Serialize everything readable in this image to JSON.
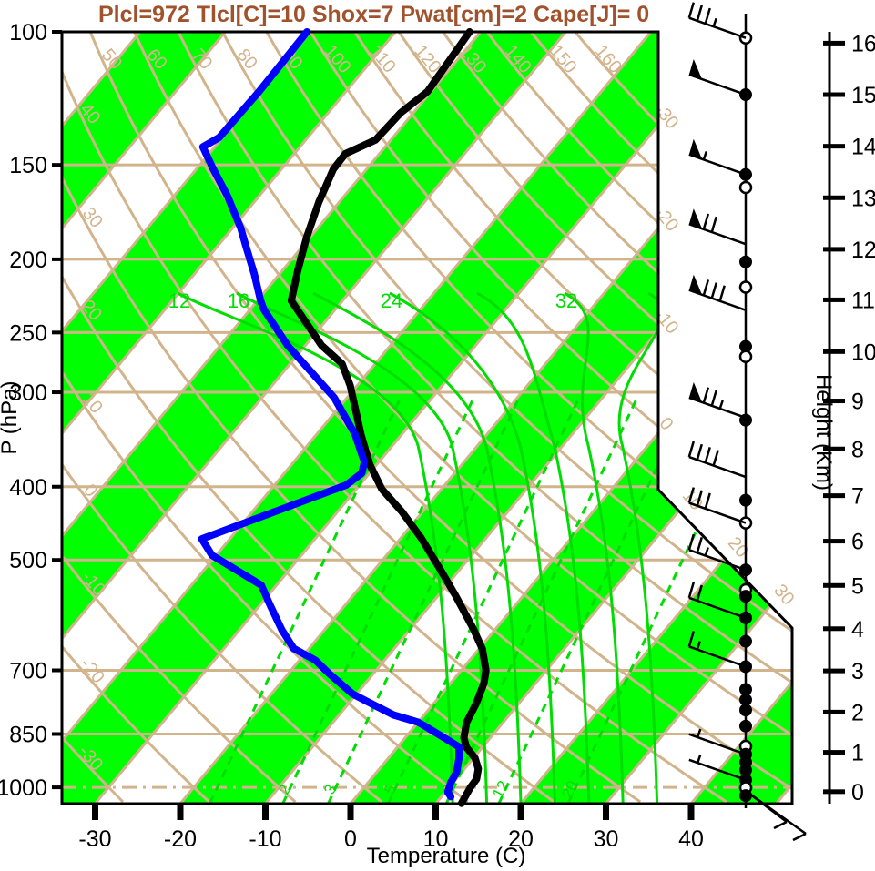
{
  "title": {
    "text": "Plcl=972 Tlcl[C]=10 Shox=7 Pwat[cm]=2 Cape[J]= 0",
    "color": "#A0522D"
  },
  "axes": {
    "pressure": {
      "title": "P (hPa)",
      "ticks": [
        100,
        150,
        200,
        250,
        300,
        400,
        500,
        700,
        850,
        1000
      ]
    },
    "temperature": {
      "title": "Temperature (C)",
      "ticks": [
        -30,
        -20,
        -10,
        0,
        10,
        20,
        30,
        40
      ]
    },
    "height": {
      "title": "Height (Km)",
      "ticks": [
        0,
        1,
        2,
        3,
        4,
        5,
        6,
        7,
        8,
        9,
        10,
        11,
        12,
        13,
        14,
        15,
        16
      ]
    }
  },
  "background": {
    "colors": {
      "band_green": "#00FF00",
      "tan": "#D2B48C",
      "green_line": "#00DD00"
    },
    "isotherms": {
      "start": -120,
      "end": 50,
      "step": 10,
      "edge_labels": [
        -30,
        -20,
        -10,
        0,
        10,
        20,
        30
      ]
    },
    "dry_adiabats": {
      "start": -30,
      "end": 160,
      "step": 10
    },
    "moist_adiabats": {
      "values": [
        12,
        16,
        20,
        24,
        28,
        32,
        36
      ],
      "labeled": [
        12,
        16,
        24,
        32
      ]
    },
    "mixing_ratio": {
      "values": [
        1,
        2,
        3,
        5,
        8,
        12,
        20
      ],
      "labeled": [
        2,
        3,
        5,
        8,
        12,
        20
      ]
    }
  },
  "chart_data": {
    "type": "line",
    "title": "Plcl=972 Tlcl[C]=10 Shox=7 Pwat[cm]=2 Cape[J]= 0",
    "xlabel": "Temperature (C)",
    "ylabel_left": "P (hPa)",
    "ylabel_right": "Height (Km)",
    "xlim": [
      -34,
      52
    ],
    "pressure_range": [
      100,
      1050
    ],
    "series": [
      {
        "name": "temperature",
        "color": "#000000",
        "points": [
          [
            1050,
            13.0
          ],
          [
            1000,
            12.5
          ],
          [
            975,
            12.4
          ],
          [
            945,
            11.6
          ],
          [
            915,
            10.2
          ],
          [
            885,
            8.1
          ],
          [
            860,
            6.9
          ],
          [
            820,
            5.7
          ],
          [
            775,
            5.0
          ],
          [
            727,
            3.9
          ],
          [
            700,
            2.9
          ],
          [
            656,
            0.4
          ],
          [
            616,
            -2.7
          ],
          [
            556,
            -8.1
          ],
          [
            512,
            -12.6
          ],
          [
            467,
            -17.7
          ],
          [
            432,
            -22.4
          ],
          [
            403,
            -27.0
          ],
          [
            374,
            -30.8
          ],
          [
            341,
            -34.8
          ],
          [
            294,
            -40.8
          ],
          [
            275,
            -43.9
          ],
          [
            260,
            -48.1
          ],
          [
            227,
            -56.0
          ],
          [
            207,
            -58.2
          ],
          [
            187,
            -60.4
          ],
          [
            168,
            -62.4
          ],
          [
            152,
            -63.9
          ],
          [
            145,
            -64.0
          ],
          [
            139,
            -61.8
          ],
          [
            128,
            -61.5
          ],
          [
            120,
            -60.4
          ],
          [
            100,
            -61.3
          ]
        ]
      },
      {
        "name": "dewpoint",
        "color": "#0000FF",
        "points": [
          [
            1029,
            11.1
          ],
          [
            1015,
            10.3
          ],
          [
            985,
            9.7
          ],
          [
            955,
            9.4
          ],
          [
            915,
            8.3
          ],
          [
            884,
            7.2
          ],
          [
            852,
            3.7
          ],
          [
            820,
            0.0
          ],
          [
            802,
            -3.6
          ],
          [
            780,
            -6.6
          ],
          [
            752,
            -10.5
          ],
          [
            707,
            -15.2
          ],
          [
            679,
            -18.1
          ],
          [
            655,
            -21.8
          ],
          [
            619,
            -25.0
          ],
          [
            574,
            -28.8
          ],
          [
            540,
            -31.8
          ],
          [
            493,
            -40.5
          ],
          [
            469,
            -43.3
          ],
          [
            398,
            -31.6
          ],
          [
            384,
            -30.9
          ],
          [
            371,
            -31.7
          ],
          [
            341,
            -35.5
          ],
          [
            305,
            -41.5
          ],
          [
            260,
            -52.1
          ],
          [
            233,
            -58.4
          ],
          [
            227,
            -59.6
          ],
          [
            209,
            -63.0
          ],
          [
            192,
            -66.7
          ],
          [
            182,
            -69.0
          ],
          [
            165,
            -73.7
          ],
          [
            152,
            -78.0
          ],
          [
            142,
            -81.4
          ],
          [
            138,
            -80.4
          ],
          [
            120,
            -80.2
          ],
          [
            100,
            -80.4
          ]
        ]
      }
    ],
    "wind_barbs": {
      "dots": [
        {
          "km": 16.1,
          "type": "open"
        },
        {
          "km": 15.0,
          "type": "filled"
        },
        {
          "km": 13.45,
          "type": "filled"
        },
        {
          "km": 13.2,
          "type": "open"
        },
        {
          "km": 11.75,
          "type": "filled"
        },
        {
          "km": 11.25,
          "type": "open"
        },
        {
          "km": 10.1,
          "type": "filled"
        },
        {
          "km": 9.9,
          "type": "open"
        },
        {
          "km": 8.6,
          "type": "filled"
        },
        {
          "km": 6.9,
          "type": "filled"
        },
        {
          "km": 6.4,
          "type": "open"
        },
        {
          "km": 5.35,
          "type": "filled"
        },
        {
          "km": 4.9,
          "type": "open"
        },
        {
          "km": 4.75,
          "type": "filled"
        },
        {
          "km": 4.25,
          "type": "filled"
        },
        {
          "km": 3.7,
          "type": "filled"
        },
        {
          "km": 3.1,
          "type": "filled"
        },
        {
          "km": 2.55,
          "type": "filled"
        },
        {
          "km": 2.3,
          "type": "filled"
        },
        {
          "km": 2.05,
          "type": "filled"
        },
        {
          "km": 1.65,
          "type": "filled"
        },
        {
          "km": 1.15,
          "type": "open"
        },
        {
          "km": 0.95,
          "type": "filled"
        },
        {
          "km": 0.75,
          "type": "filled"
        },
        {
          "km": 0.55,
          "type": "filled"
        },
        {
          "km": 0.3,
          "type": "filled"
        },
        {
          "km": 0.1,
          "type": "open"
        },
        {
          "km": -0.1,
          "type": "filled"
        }
      ],
      "barbs": [
        {
          "km": 16.1,
          "flags": 0,
          "full": 3,
          "half": 1
        },
        {
          "km": 15.0,
          "flags": 1,
          "full": 0,
          "half": 0
        },
        {
          "km": 13.45,
          "flags": 1,
          "full": 0,
          "half": 1
        },
        {
          "km": 12.1,
          "flags": 1,
          "full": 2,
          "half": 0
        },
        {
          "km": 10.8,
          "flags": 1,
          "full": 3,
          "half": 0
        },
        {
          "km": 8.65,
          "flags": 1,
          "full": 2,
          "half": 1
        },
        {
          "km": 7.4,
          "flags": 0,
          "full": 4,
          "half": 0
        },
        {
          "km": 6.4,
          "flags": 0,
          "full": 3,
          "half": 0
        },
        {
          "km": 5.35,
          "flags": 0,
          "full": 2,
          "half": 1
        },
        {
          "km": 4.25,
          "flags": 0,
          "full": 2,
          "half": 0
        },
        {
          "km": 3.1,
          "flags": 0,
          "full": 1,
          "half": 1
        },
        {
          "km": 0.95,
          "flags": 0,
          "full": 0,
          "half": 1
        },
        {
          "km": 0.3,
          "flags": 0,
          "full": 0,
          "half": 1
        }
      ],
      "surface_shafts": [
        {
          "dx": 45,
          "dy": 34
        },
        {
          "dx": 66,
          "dy": 47
        }
      ]
    }
  }
}
